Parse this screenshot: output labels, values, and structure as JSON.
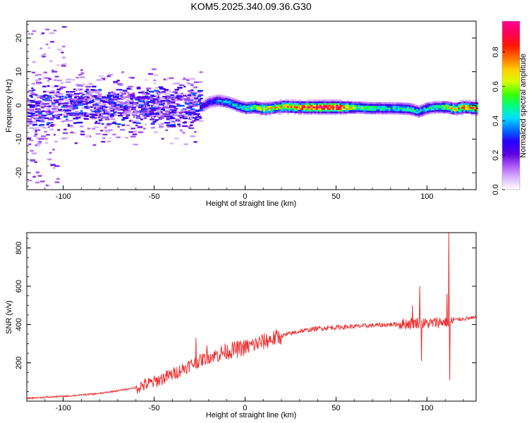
{
  "chart_data": [
    {
      "type": "heatmap",
      "title": "KOM5.2025.340.09.36.G30",
      "xlabel": "Height of straight line (km)",
      "ylabel": "Frequency (Hz)",
      "xlim": [
        -120,
        127
      ],
      "ylim": [
        -25,
        25
      ],
      "xticks": [
        -100,
        -50,
        0,
        50,
        100
      ],
      "yticks": [
        -20,
        -10,
        0,
        10,
        20
      ],
      "colorbar": {
        "label": "Normalized spectral amplitude",
        "range": [
          0.0,
          0.98
        ],
        "ticks": [
          0.0,
          0.2,
          0.4,
          0.6,
          0.8
        ],
        "tick_labels": [
          "0.0",
          "0.2",
          "0.4",
          "0.6",
          "0.8"
        ],
        "colors": [
          "#ffffff",
          "#d8b4fe",
          "#a855f7",
          "#5b00e0",
          "#2600ff",
          "#0070ff",
          "#00e0ff",
          "#00ff80",
          "#40ff00",
          "#d4ff00",
          "#ffd000",
          "#ff7000",
          "#ff1a00",
          "#ff0050",
          "#ff0090"
        ]
      },
      "ridge": {
        "x": [
          -25,
          -20,
          -15,
          -10,
          -5,
          0,
          5,
          10,
          20,
          30,
          40,
          50,
          60,
          70,
          80,
          90,
          95,
          100,
          105,
          110,
          115,
          120,
          127
        ],
        "frequency": [
          -0.5,
          1,
          1.5,
          1,
          0,
          -0.8,
          -0.5,
          -1,
          -0.3,
          -0.5,
          -0.5,
          -0.5,
          -0.6,
          -0.8,
          -0.8,
          -1,
          -1.8,
          -0.8,
          -0.5,
          -0.5,
          -1,
          -0.5,
          -0.8
        ],
        "amplitude": [
          0.25,
          0.3,
          0.35,
          0.4,
          0.45,
          0.5,
          0.6,
          0.65,
          0.7,
          0.8,
          0.9,
          0.95,
          0.6,
          0.5,
          0.45,
          0.5,
          0.4,
          0.45,
          0.5,
          0.6,
          0.7,
          0.75,
          0.8
        ]
      },
      "noise_region": {
        "x_range": [
          -120,
          -25
        ],
        "frequency_spread": [
          -25,
          25
        ],
        "amplitude_range": [
          0.05,
          0.35
        ]
      }
    },
    {
      "type": "line",
      "xlabel": "Height of straight line (km)",
      "ylabel": "SNR (v/v)",
      "xlim": [
        -120,
        127
      ],
      "ylim": [
        0,
        880
      ],
      "xticks": [
        -100,
        -50,
        0,
        50,
        100
      ],
      "yticks": [
        200,
        400,
        600,
        800
      ],
      "color": "#ee3333",
      "trend": {
        "x": [
          -120,
          -100,
          -80,
          -60,
          -50,
          -40,
          -30,
          -20,
          -10,
          0,
          10,
          20,
          30,
          40,
          50,
          60,
          70,
          80,
          90,
          95,
          100,
          105,
          110,
          113,
          115,
          120,
          127
        ],
        "y": [
          15,
          25,
          40,
          70,
          100,
          140,
          190,
          230,
          260,
          280,
          310,
          340,
          365,
          380,
          385,
          390,
          395,
          400,
          405,
          410,
          405,
          410,
          415,
          410,
          425,
          430,
          435
        ]
      },
      "spikes": [
        {
          "x": -27,
          "y": 330
        },
        {
          "x": -21,
          "y": 290
        },
        {
          "x": 92,
          "y": 500
        },
        {
          "x": 96,
          "y": 600
        },
        {
          "x": 97,
          "y": 210
        },
        {
          "x": 111,
          "y": 560
        },
        {
          "x": 112,
          "y": 880
        },
        {
          "x": 112.5,
          "y": 110
        }
      ]
    }
  ]
}
